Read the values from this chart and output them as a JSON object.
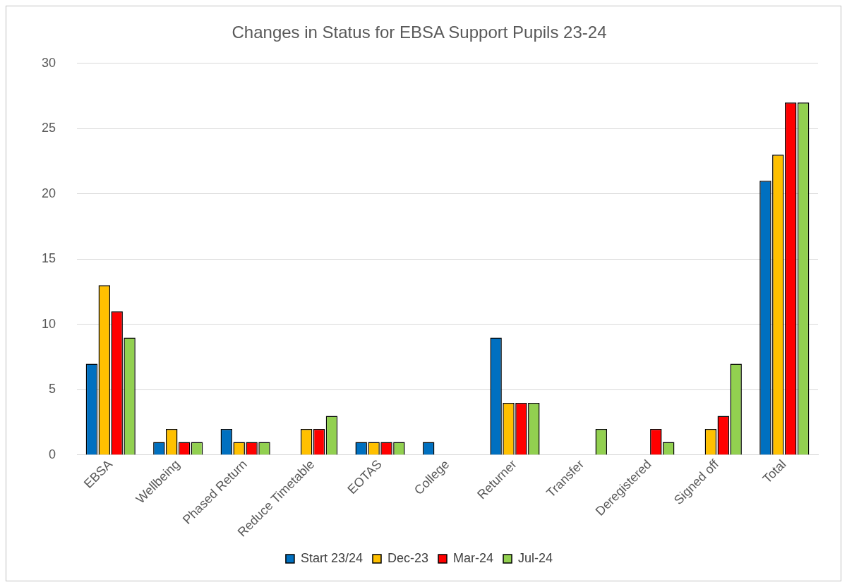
{
  "chart_data": {
    "type": "bar",
    "title": "Changes in Status for EBSA Support Pupils 23-24",
    "categories": [
      "EBSA",
      "Wellbeing",
      "Phased Return",
      "Reduce Timetable",
      "EOTAS",
      "College",
      "Returner",
      "Transfer",
      "Deregistered",
      "Signed off",
      "Total"
    ],
    "series": [
      {
        "name": "Start 23/24",
        "color": "#0070c0",
        "values": [
          7,
          1,
          2,
          null,
          1,
          1,
          9,
          null,
          null,
          null,
          21
        ]
      },
      {
        "name": "Dec-23",
        "color": "#ffc000",
        "values": [
          13,
          2,
          1,
          2,
          1,
          null,
          4,
          null,
          null,
          2,
          23
        ]
      },
      {
        "name": "Mar-24",
        "color": "#ff0000",
        "values": [
          11,
          1,
          1,
          2,
          1,
          null,
          4,
          null,
          2,
          3,
          27
        ]
      },
      {
        "name": "Jul-24",
        "color": "#92d050",
        "values": [
          9,
          1,
          1,
          3,
          1,
          null,
          4,
          2,
          1,
          7,
          27
        ]
      }
    ],
    "ylim": [
      0,
      30
    ],
    "yticks": [
      0,
      5,
      10,
      15,
      20,
      25,
      30
    ],
    "grid": "y",
    "legend": "bottom"
  }
}
